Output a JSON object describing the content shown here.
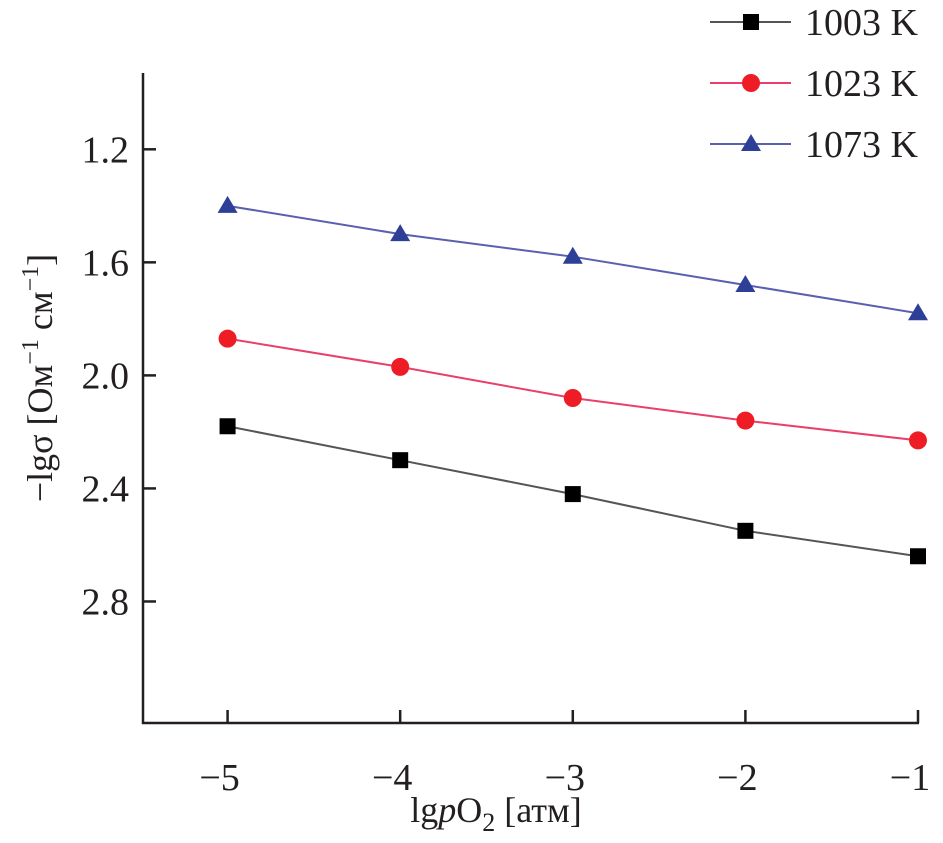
{
  "chart_data": {
    "type": "line",
    "title": "",
    "xlabel": "lgpO2 [атм]",
    "xlabel_parts": {
      "prefix": "lg",
      "italic": "p",
      "main": "O",
      "sub": "2",
      "suffix": " [атм]"
    },
    "ylabel": "−lgσ [Ом−1 см−1]",
    "ylabel_parts": {
      "prefix": "−lg",
      "sigma": "σ",
      "unit1": " [Ом",
      "sup1": "−1",
      "unit2": " см",
      "sup2": "−1",
      "close": "]"
    },
    "xlim": [
      -5.49,
      -1.0
    ],
    "ylim": [
      0.93,
      3.23
    ],
    "y_inverted": true,
    "xticks": [
      -5,
      -4,
      -3,
      -2,
      -1
    ],
    "xtick_labels": [
      "−5",
      "−4",
      "−3",
      "−2",
      "−1"
    ],
    "yticks": [
      1.2,
      1.6,
      2.0,
      2.4,
      2.8
    ],
    "ytick_labels": [
      "1.2",
      "1.6",
      "2.0",
      "2.4",
      "2.8"
    ],
    "grid": false,
    "legend_position": "top-right",
    "x": [
      -5,
      -4,
      -3,
      -2,
      -1
    ],
    "series": [
      {
        "name": "1003 K",
        "marker": "square",
        "color": "#000000",
        "line_color": "#555555",
        "values": [
          2.18,
          2.3,
          2.42,
          2.55,
          2.64
        ]
      },
      {
        "name": "1023 K",
        "marker": "circle",
        "color": "#ee1c25",
        "line_color": "#e8406a",
        "values": [
          1.87,
          1.97,
          2.08,
          2.16,
          2.23
        ]
      },
      {
        "name": "1073 K",
        "marker": "triangle",
        "color": "#2e3f98",
        "line_color": "#5a5fb0",
        "values": [
          1.4,
          1.5,
          1.58,
          1.68,
          1.78
        ]
      }
    ]
  }
}
